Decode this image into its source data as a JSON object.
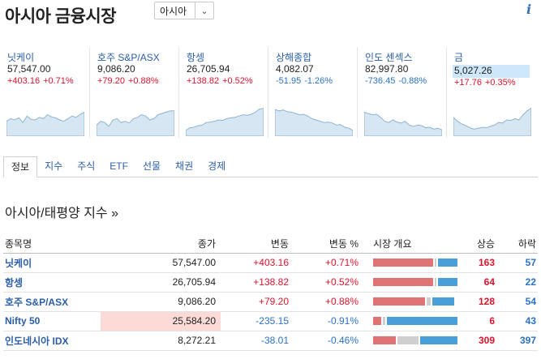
{
  "header": {
    "title": "아시아 금융시장",
    "region_value": "아시아"
  },
  "cards": [
    {
      "name": "닛케이",
      "price": "57,547.00",
      "change": "+403.16",
      "change_pct": "+0.71%",
      "dir": "up",
      "highlight": false,
      "spark": [
        0.55,
        0.45,
        0.5,
        0.42,
        0.6,
        0.35,
        0.48,
        0.5,
        0.4,
        0.45,
        0.3,
        0.38,
        0.42,
        0.5,
        0.55,
        0.45,
        0.35,
        0.4,
        0.28,
        0.2
      ]
    },
    {
      "name": "호주 S&P/ASX",
      "price": "9,086.20",
      "change": "+79.20",
      "change_pct": "+0.88%",
      "dir": "up",
      "highlight": false,
      "spark": [
        0.7,
        0.55,
        0.6,
        0.75,
        0.5,
        0.45,
        0.6,
        0.55,
        0.62,
        0.45,
        0.4,
        0.3,
        0.35,
        0.5,
        0.45,
        0.3,
        0.25,
        0.2,
        0.15,
        0.15
      ]
    },
    {
      "name": "항셍",
      "price": "26,705.94",
      "change": "+138.82",
      "change_pct": "+0.52%",
      "dir": "up",
      "highlight": false,
      "spark": [
        0.9,
        0.8,
        0.78,
        0.72,
        0.7,
        0.6,
        0.58,
        0.55,
        0.5,
        0.52,
        0.45,
        0.42,
        0.4,
        0.35,
        0.3,
        0.32,
        0.28,
        0.2,
        0.08,
        0.05
      ]
    },
    {
      "name": "상해종합",
      "price": "4,082.07",
      "change": "-51.95",
      "change_pct": "-1.26%",
      "dir": "down",
      "highlight": false,
      "spark": [
        0.1,
        0.15,
        0.12,
        0.18,
        0.2,
        0.25,
        0.3,
        0.28,
        0.35,
        0.45,
        0.5,
        0.55,
        0.6,
        0.58,
        0.62,
        0.7,
        0.68,
        0.78,
        0.82,
        0.9
      ]
    },
    {
      "name": "인도 센섹스",
      "price": "82,997.80",
      "change": "-736.45",
      "change_pct": "-0.88%",
      "dir": "down",
      "highlight": false,
      "spark": [
        0.2,
        0.25,
        0.3,
        0.28,
        0.4,
        0.55,
        0.6,
        0.5,
        0.58,
        0.62,
        0.55,
        0.7,
        0.75,
        0.7,
        0.72,
        0.8,
        0.78,
        0.85,
        0.82,
        0.88
      ]
    },
    {
      "name": "금",
      "price": "5,027.26",
      "change": "+17.76",
      "change_pct": "+0.35%",
      "dir": "up",
      "highlight": true,
      "spark": [
        0.4,
        0.55,
        0.65,
        0.72,
        0.8,
        0.85,
        0.82,
        0.78,
        0.8,
        0.75,
        0.7,
        0.6,
        0.62,
        0.5,
        0.52,
        0.45,
        0.5,
        0.3,
        0.15,
        0.05
      ]
    }
  ],
  "tabs": [
    "정보",
    "지수",
    "주식",
    "ETF",
    "선물",
    "채권",
    "경제"
  ],
  "section": {
    "title": "아시아/태평양 지수 »"
  },
  "table": {
    "headers": [
      "종목명",
      "종가",
      "변동",
      "변동 %",
      "시장 개요",
      "상승",
      "하락"
    ],
    "rows": [
      {
        "name": "닛케이",
        "close": "57,547.00",
        "change": "+403.16",
        "change_pct": "+0.71%",
        "dir": "up",
        "adv": "163",
        "dec": "57",
        "breadth": [
          0.74,
          0.02,
          0.24
        ],
        "flash": false
      },
      {
        "name": "항셍",
        "close": "26,705.94",
        "change": "+138.82",
        "change_pct": "+0.52%",
        "dir": "up",
        "adv": "64",
        "dec": "22",
        "breadth": [
          0.74,
          0.02,
          0.24
        ],
        "flash": false
      },
      {
        "name": "호주 S&P/ASX",
        "close": "9,086.20",
        "change": "+79.20",
        "change_pct": "+0.88%",
        "dir": "up",
        "adv": "128",
        "dec": "54",
        "breadth": [
          0.64,
          0.05,
          0.27
        ],
        "flash": false
      },
      {
        "name": "Nifty 50",
        "close": "25,584.20",
        "change": "-235.15",
        "change_pct": "-0.91%",
        "dir": "down",
        "adv": "6",
        "dec": "43",
        "breadth": [
          0.1,
          0.03,
          0.87
        ],
        "flash": true
      },
      {
        "name": "인도네시아 IDX",
        "close": "8,272.21",
        "change": "-38.01",
        "change_pct": "-0.46%",
        "dir": "down",
        "adv": "309",
        "dec": "397",
        "breadth": [
          0.28,
          0.26,
          0.46
        ],
        "flash": false
      }
    ]
  }
}
